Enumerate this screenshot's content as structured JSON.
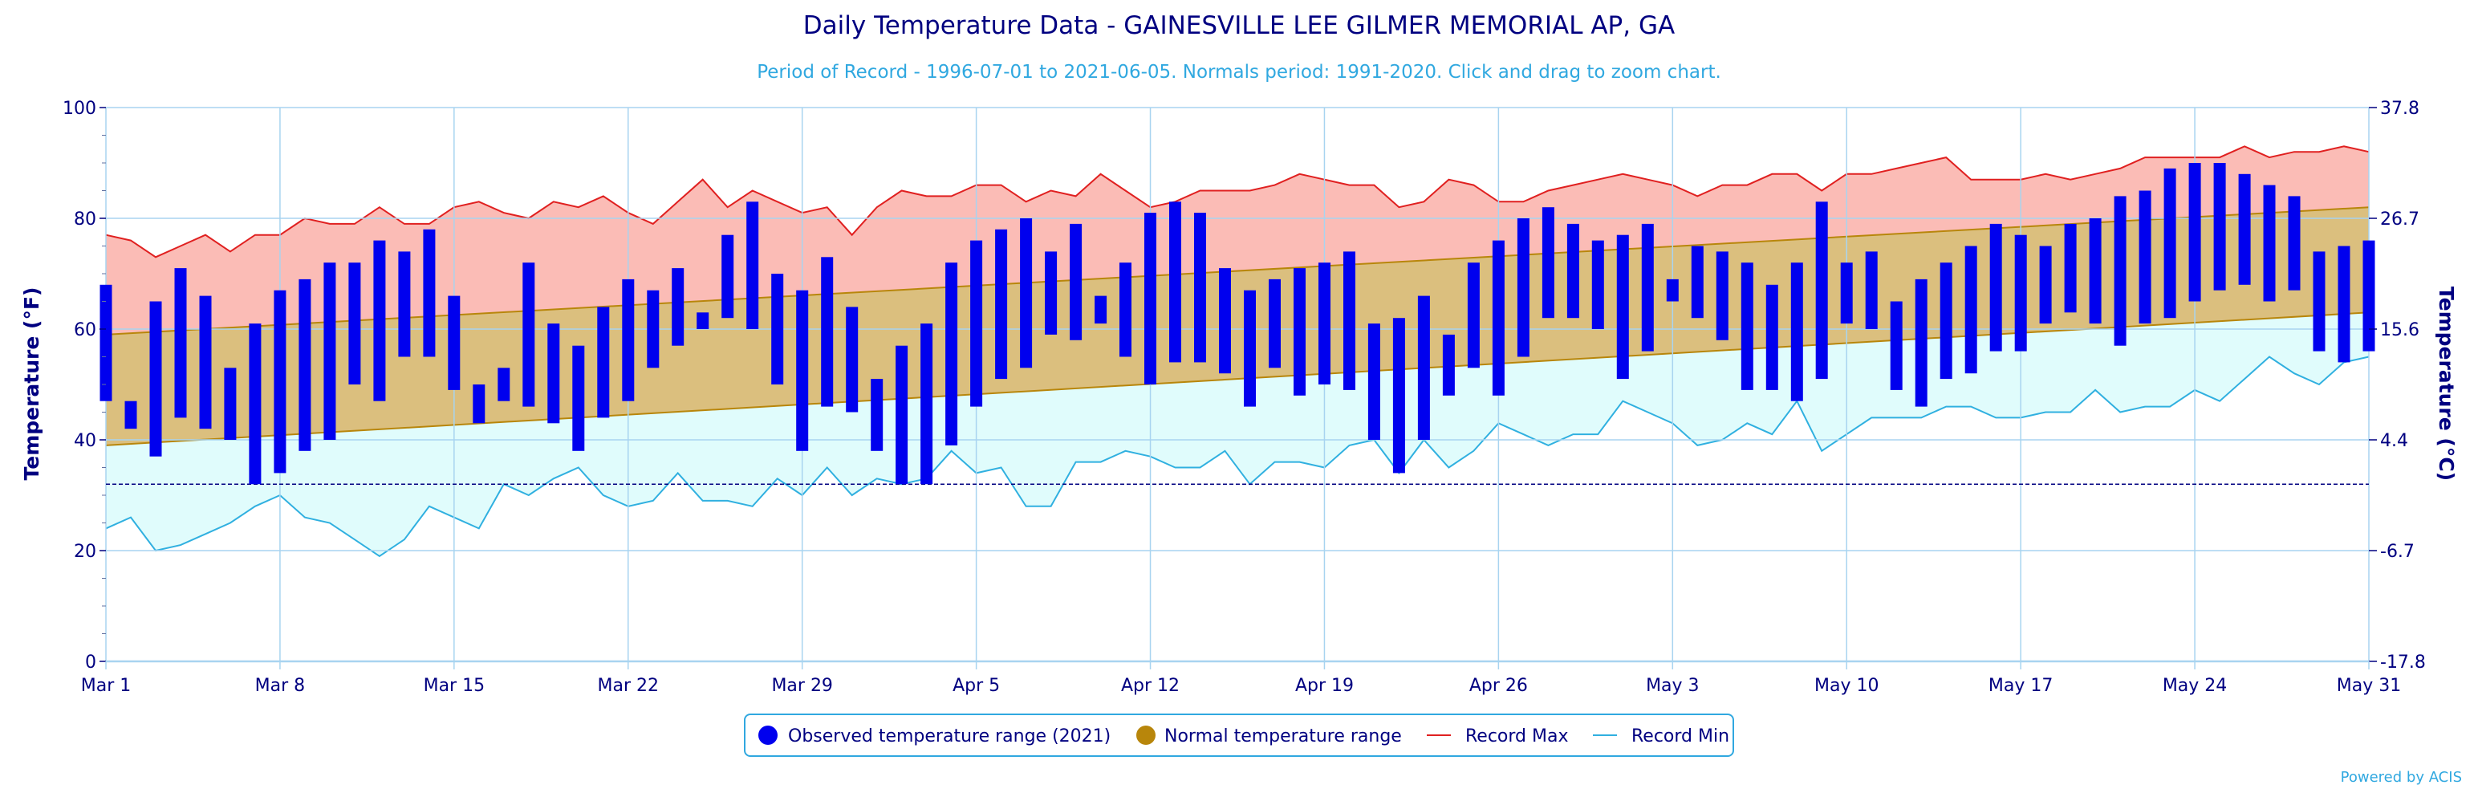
{
  "colors": {
    "record_band": "#fbbcb6",
    "normal_band": "#dbbf7e",
    "min_band": "#e0fcfc",
    "record_max_line": "#e02020",
    "record_min_line": "#30b0e0",
    "normal_line": "#b8860b",
    "observed_bar": "#0000ee",
    "freezing_line": "#000080",
    "title": "#000080",
    "subtitle": "#30a8e0",
    "axis_text": "#000080",
    "grid": "#a8d4f0",
    "credit": "#30a8e0"
  },
  "credit": "Powered by ACIS",
  "chart_data": {
    "type": "bar",
    "title": "Daily Temperature Data - GAINESVILLE LEE GILMER MEMORIAL AP, GA",
    "subtitle": "Period of Record - 1996-07-01 to 2021-06-05. Normals period: 1991-2020. Click and drag to zoom chart.",
    "ylabel": "Temperature (°F)",
    "ylabel_right": "Temperature (°C)",
    "ylim": [
      0,
      100
    ],
    "grid": true,
    "legend_position": "bottom-center",
    "x_start": "2021-03-01",
    "x_end": "2021-05-31",
    "x_tick_labels": [
      "Mar 1",
      "Mar 8",
      "Mar 15",
      "Mar 22",
      "Mar 29",
      "Apr 5",
      "Apr 12",
      "Apr 19",
      "Apr 26",
      "May 3",
      "May 10",
      "May 17",
      "May 24",
      "May 31"
    ],
    "y_ticks": [
      0,
      20,
      40,
      60,
      80,
      100
    ],
    "y_ticks_right": [
      "-17.8",
      "-6.7",
      "4.4",
      "15.6",
      "26.7",
      "37.8"
    ],
    "freezing_line": 32,
    "legend": [
      "Observed temperature range (2021)",
      "Normal temperature range",
      "Record Max",
      "Record Min"
    ],
    "normal_range": {
      "start": [
        39,
        59
      ],
      "end": [
        63,
        82
      ]
    },
    "observed_low": [
      47,
      42,
      37,
      44,
      42,
      40,
      32,
      34,
      38,
      40,
      50,
      47,
      55,
      55,
      49,
      43,
      47,
      46,
      43,
      38,
      44,
      47,
      53,
      57,
      60,
      62,
      60,
      50,
      38,
      46,
      45,
      38,
      32,
      32,
      39,
      46,
      51,
      53,
      59,
      58,
      61,
      55,
      50,
      54,
      54,
      52,
      46,
      53,
      48,
      50,
      49,
      40,
      34,
      40,
      48,
      53,
      48,
      55,
      62,
      62,
      60,
      51,
      56,
      65,
      62,
      58,
      49,
      49,
      47,
      51,
      61,
      60,
      49,
      46,
      51,
      52,
      56,
      56,
      61,
      63,
      61,
      57,
      61,
      62,
      65,
      67,
      68,
      65,
      67,
      56,
      54,
      56
    ],
    "observed_high": [
      68,
      47,
      65,
      71,
      66,
      53,
      61,
      67,
      69,
      72,
      72,
      76,
      74,
      78,
      66,
      50,
      53,
      72,
      61,
      57,
      64,
      69,
      67,
      71,
      63,
      77,
      83,
      70,
      67,
      73,
      64,
      51,
      57,
      61,
      72,
      76,
      78,
      80,
      74,
      79,
      66,
      72,
      81,
      83,
      81,
      71,
      67,
      69,
      71,
      72,
      74,
      61,
      62,
      66,
      59,
      72,
      76,
      80,
      82,
      79,
      76,
      77,
      79,
      69,
      75,
      74,
      72,
      68,
      72,
      83,
      72,
      74,
      65,
      69,
      72,
      75,
      79,
      77,
      75,
      79,
      80,
      84,
      85,
      89,
      90,
      90,
      88,
      86,
      84,
      74,
      75,
      76
    ],
    "record_max": [
      77,
      76,
      73,
      75,
      77,
      74,
      77,
      77,
      80,
      79,
      79,
      82,
      79,
      79,
      82,
      83,
      81,
      80,
      83,
      82,
      84,
      81,
      79,
      83,
      87,
      82,
      85,
      83,
      81,
      82,
      77,
      82,
      85,
      84,
      84,
      86,
      86,
      83,
      85,
      84,
      88,
      85,
      82,
      83,
      85,
      85,
      85,
      86,
      88,
      87,
      86,
      86,
      82,
      83,
      87,
      86,
      83,
      83,
      85,
      86,
      87,
      88,
      87,
      86,
      84,
      86,
      86,
      88,
      88,
      85,
      88,
      88,
      89,
      90,
      91,
      87,
      87,
      87,
      88,
      87,
      88,
      89,
      91,
      91,
      91,
      91,
      93,
      91,
      92,
      92,
      93,
      92
    ],
    "record_min": [
      24,
      26,
      20,
      21,
      23,
      25,
      28,
      30,
      26,
      25,
      22,
      19,
      22,
      28,
      26,
      24,
      32,
      30,
      33,
      35,
      30,
      28,
      29,
      34,
      29,
      29,
      28,
      33,
      30,
      35,
      30,
      33,
      32,
      33,
      38,
      34,
      35,
      28,
      28,
      36,
      36,
      38,
      37,
      35,
      35,
      38,
      32,
      36,
      36,
      35,
      39,
      40,
      34,
      40,
      35,
      38,
      43,
      41,
      39,
      41,
      41,
      47,
      45,
      43,
      39,
      40,
      43,
      41,
      47,
      38,
      41,
      44,
      44,
      44,
      46,
      46,
      44,
      44,
      45,
      45,
      49,
      45,
      46,
      46,
      49,
      47,
      51,
      55,
      52,
      50,
      54,
      55
    ]
  }
}
